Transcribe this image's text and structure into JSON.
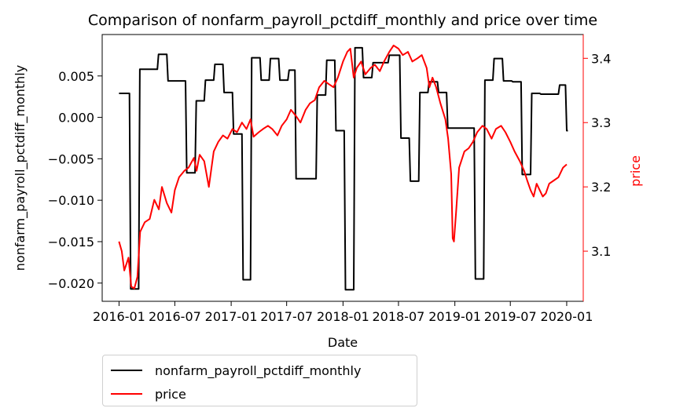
{
  "chart_data": {
    "type": "line",
    "title": "Comparison of nonfarm_payroll_pctdiff_monthly and price over time",
    "xlabel": "Date",
    "ylabel_left": "nonfarm_payroll_pctdiff_monthly",
    "ylabel_right": "price",
    "x_ticks": [
      "2016-01",
      "2016-07",
      "2017-01",
      "2017-07",
      "2018-01",
      "2018-07",
      "2019-01",
      "2019-07",
      "2020-01"
    ],
    "y_left_ticks": [
      0.005,
      0.0,
      -0.005,
      -0.01,
      -0.015,
      -0.02
    ],
    "y_left_tick_labels": [
      "0.005",
      "0.000",
      "−0.005",
      "−0.010",
      "−0.015",
      "−0.020"
    ],
    "y_right_ticks": [
      3.1,
      3.2,
      3.3,
      3.4
    ],
    "y_right_tick_labels": [
      "3.1",
      "3.2",
      "3.3",
      "3.4"
    ],
    "x_range": [
      "2015-11-07",
      "2020-02-24"
    ],
    "y_left_range": [
      -0.0222,
      0.01
    ],
    "y_right_range": [
      3.022,
      3.437
    ],
    "legend_position": "below",
    "series": [
      {
        "name": "nonfarm_payroll_pctdiff_monthly",
        "axis": "left",
        "color": "#000000",
        "points": [
          [
            "2016-01-01",
            0.0029
          ],
          [
            "2016-02-04",
            0.0029
          ],
          [
            "2016-02-08",
            -0.0207
          ],
          [
            "2016-03-05",
            -0.0207
          ],
          [
            "2016-03-09",
            0.0058
          ],
          [
            "2016-05-05",
            0.0058
          ],
          [
            "2016-05-09",
            0.0076
          ],
          [
            "2016-06-05",
            0.0076
          ],
          [
            "2016-06-09",
            0.0044
          ],
          [
            "2016-08-05",
            0.0044
          ],
          [
            "2016-08-09",
            -0.0067
          ],
          [
            "2016-09-05",
            -0.0067
          ],
          [
            "2016-09-09",
            0.002
          ],
          [
            "2016-10-05",
            0.002
          ],
          [
            "2016-10-09",
            0.0045
          ],
          [
            "2016-11-05",
            0.0045
          ],
          [
            "2016-11-09",
            0.0064
          ],
          [
            "2016-12-05",
            0.0064
          ],
          [
            "2016-12-09",
            0.003
          ],
          [
            "2017-01-05",
            0.003
          ],
          [
            "2017-01-09",
            -0.002
          ],
          [
            "2017-02-05",
            -0.002
          ],
          [
            "2017-02-09",
            -0.0196
          ],
          [
            "2017-03-05",
            -0.0196
          ],
          [
            "2017-03-09",
            0.0072
          ],
          [
            "2017-04-05",
            0.0072
          ],
          [
            "2017-04-09",
            0.0045
          ],
          [
            "2017-05-05",
            0.0045
          ],
          [
            "2017-05-09",
            0.0071
          ],
          [
            "2017-06-05",
            0.0071
          ],
          [
            "2017-06-09",
            0.0045
          ],
          [
            "2017-07-05",
            0.0045
          ],
          [
            "2017-07-09",
            0.0057
          ],
          [
            "2017-07-28",
            0.0057
          ],
          [
            "2017-08-01",
            -0.0074
          ],
          [
            "2017-10-05",
            -0.0074
          ],
          [
            "2017-10-09",
            0.0027
          ],
          [
            "2017-11-05",
            0.0027
          ],
          [
            "2017-11-09",
            0.0069
          ],
          [
            "2017-12-05",
            0.0069
          ],
          [
            "2017-12-09",
            -0.0016
          ],
          [
            "2018-01-05",
            -0.0016
          ],
          [
            "2018-01-09",
            -0.0208
          ],
          [
            "2018-02-05",
            -0.0208
          ],
          [
            "2018-02-09",
            0.0084
          ],
          [
            "2018-03-05",
            0.0084
          ],
          [
            "2018-03-09",
            0.0048
          ],
          [
            "2018-04-05",
            0.0048
          ],
          [
            "2018-04-09",
            0.0066
          ],
          [
            "2018-05-28",
            0.0066
          ],
          [
            "2018-06-01",
            0.0075
          ],
          [
            "2018-07-05",
            0.0075
          ],
          [
            "2018-07-09",
            -0.0025
          ],
          [
            "2018-08-05",
            -0.0025
          ],
          [
            "2018-08-09",
            -0.0077
          ],
          [
            "2018-09-05",
            -0.0077
          ],
          [
            "2018-09-09",
            0.003
          ],
          [
            "2018-10-05",
            0.003
          ],
          [
            "2018-10-09",
            0.0043
          ],
          [
            "2018-11-05",
            0.0043
          ],
          [
            "2018-11-09",
            0.003
          ],
          [
            "2018-12-05",
            0.003
          ],
          [
            "2018-12-09",
            -0.0013
          ],
          [
            "2019-03-05",
            -0.0013
          ],
          [
            "2019-03-09",
            -0.0195
          ],
          [
            "2019-04-05",
            -0.0195
          ],
          [
            "2019-04-09",
            0.0045
          ],
          [
            "2019-05-05",
            0.0045
          ],
          [
            "2019-05-09",
            0.0071
          ],
          [
            "2019-06-05",
            0.0071
          ],
          [
            "2019-06-09",
            0.0044
          ],
          [
            "2019-07-05",
            0.0044
          ],
          [
            "2019-07-09",
            0.0043
          ],
          [
            "2019-08-05",
            0.0043
          ],
          [
            "2019-08-09",
            -0.0069
          ],
          [
            "2019-09-05",
            -0.0069
          ],
          [
            "2019-09-09",
            0.0029
          ],
          [
            "2019-10-05",
            0.0029
          ],
          [
            "2019-10-09",
            0.0028
          ],
          [
            "2019-12-05",
            0.0028
          ],
          [
            "2019-12-09",
            0.0039
          ],
          [
            "2019-12-28",
            0.0039
          ],
          [
            "2020-01-01",
            -0.0016
          ],
          [
            "2020-01-05",
            -0.0016
          ]
        ]
      },
      {
        "name": "price",
        "axis": "right",
        "color": "#ff0000",
        "points": [
          [
            "2016-01-01",
            3.115
          ],
          [
            "2016-01-10",
            3.1
          ],
          [
            "2016-01-18",
            3.07
          ],
          [
            "2016-02-01",
            3.09
          ],
          [
            "2016-02-10",
            3.045
          ],
          [
            "2016-02-20",
            3.042
          ],
          [
            "2016-03-01",
            3.06
          ],
          [
            "2016-03-10",
            3.13
          ],
          [
            "2016-03-25",
            3.145
          ],
          [
            "2016-04-10",
            3.15
          ],
          [
            "2016-04-25",
            3.18
          ],
          [
            "2016-05-10",
            3.165
          ],
          [
            "2016-05-20",
            3.2
          ],
          [
            "2016-06-05",
            3.175
          ],
          [
            "2016-06-20",
            3.16
          ],
          [
            "2016-07-01",
            3.195
          ],
          [
            "2016-07-15",
            3.215
          ],
          [
            "2016-08-01",
            3.225
          ],
          [
            "2016-08-15",
            3.23
          ],
          [
            "2016-09-01",
            3.245
          ],
          [
            "2016-09-10",
            3.225
          ],
          [
            "2016-09-20",
            3.25
          ],
          [
            "2016-10-05",
            3.24
          ],
          [
            "2016-10-20",
            3.2
          ],
          [
            "2016-11-05",
            3.255
          ],
          [
            "2016-11-20",
            3.27
          ],
          [
            "2016-12-05",
            3.28
          ],
          [
            "2016-12-20",
            3.275
          ],
          [
            "2017-01-05",
            3.29
          ],
          [
            "2017-01-20",
            3.285
          ],
          [
            "2017-02-05",
            3.3
          ],
          [
            "2017-02-20",
            3.29
          ],
          [
            "2017-03-05",
            3.305
          ],
          [
            "2017-03-15",
            3.278
          ],
          [
            "2017-04-01",
            3.285
          ],
          [
            "2017-04-15",
            3.29
          ],
          [
            "2017-05-01",
            3.295
          ],
          [
            "2017-05-15",
            3.29
          ],
          [
            "2017-06-01",
            3.28
          ],
          [
            "2017-06-15",
            3.295
          ],
          [
            "2017-07-01",
            3.305
          ],
          [
            "2017-07-15",
            3.32
          ],
          [
            "2017-08-01",
            3.31
          ],
          [
            "2017-08-15",
            3.3
          ],
          [
            "2017-09-01",
            3.32
          ],
          [
            "2017-09-15",
            3.33
          ],
          [
            "2017-10-01",
            3.335
          ],
          [
            "2017-10-15",
            3.355
          ],
          [
            "2017-11-01",
            3.365
          ],
          [
            "2017-11-15",
            3.36
          ],
          [
            "2017-12-01",
            3.355
          ],
          [
            "2017-12-15",
            3.37
          ],
          [
            "2018-01-01",
            3.395
          ],
          [
            "2018-01-15",
            3.41
          ],
          [
            "2018-01-25",
            3.415
          ],
          [
            "2018-02-05",
            3.37
          ],
          [
            "2018-02-15",
            3.385
          ],
          [
            "2018-03-01",
            3.395
          ],
          [
            "2018-03-15",
            3.375
          ],
          [
            "2018-04-01",
            3.385
          ],
          [
            "2018-04-15",
            3.39
          ],
          [
            "2018-05-01",
            3.38
          ],
          [
            "2018-05-15",
            3.395
          ],
          [
            "2018-06-01",
            3.41
          ],
          [
            "2018-06-15",
            3.42
          ],
          [
            "2018-07-01",
            3.415
          ],
          [
            "2018-07-15",
            3.405
          ],
          [
            "2018-08-01",
            3.41
          ],
          [
            "2018-08-15",
            3.395
          ],
          [
            "2018-09-01",
            3.4
          ],
          [
            "2018-09-15",
            3.405
          ],
          [
            "2018-10-01",
            3.385
          ],
          [
            "2018-10-10",
            3.355
          ],
          [
            "2018-10-20",
            3.37
          ],
          [
            "2018-11-01",
            3.355
          ],
          [
            "2018-11-15",
            3.33
          ],
          [
            "2018-12-01",
            3.305
          ],
          [
            "2018-12-10",
            3.275
          ],
          [
            "2018-12-20",
            3.22
          ],
          [
            "2018-12-25",
            3.12
          ],
          [
            "2018-12-29",
            3.115
          ],
          [
            "2019-01-05",
            3.16
          ],
          [
            "2019-01-15",
            3.23
          ],
          [
            "2019-02-01",
            3.255
          ],
          [
            "2019-02-15",
            3.26
          ],
          [
            "2019-03-01",
            3.27
          ],
          [
            "2019-03-15",
            3.285
          ],
          [
            "2019-04-01",
            3.295
          ],
          [
            "2019-04-15",
            3.29
          ],
          [
            "2019-05-01",
            3.275
          ],
          [
            "2019-05-15",
            3.29
          ],
          [
            "2019-06-01",
            3.295
          ],
          [
            "2019-06-15",
            3.285
          ],
          [
            "2019-07-01",
            3.27
          ],
          [
            "2019-07-15",
            3.255
          ],
          [
            "2019-08-01",
            3.24
          ],
          [
            "2019-08-15",
            3.225
          ],
          [
            "2019-08-25",
            3.21
          ],
          [
            "2019-09-05",
            3.195
          ],
          [
            "2019-09-15",
            3.185
          ],
          [
            "2019-09-25",
            3.205
          ],
          [
            "2019-10-05",
            3.195
          ],
          [
            "2019-10-15",
            3.185
          ],
          [
            "2019-10-25",
            3.19
          ],
          [
            "2019-11-05",
            3.205
          ],
          [
            "2019-11-20",
            3.21
          ],
          [
            "2019-12-05",
            3.215
          ],
          [
            "2019-12-20",
            3.23
          ],
          [
            "2020-01-01",
            3.235
          ]
        ]
      }
    ]
  }
}
